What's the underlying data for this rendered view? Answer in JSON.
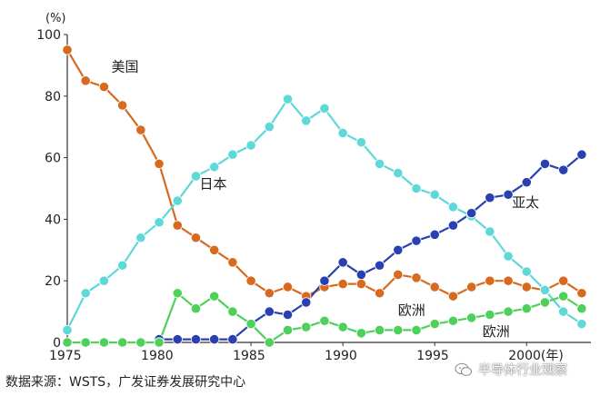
{
  "source_note": "数据来源：WSTS，广发证券发展研究中心",
  "watermark": {
    "text": "半导体行业观察",
    "icon": "wechat-icon"
  },
  "chart_data": {
    "type": "line",
    "y_unit_label": "(%)",
    "ylim": [
      0,
      100
    ],
    "y_ticks": [
      0,
      20,
      40,
      60,
      80,
      100
    ],
    "xlim": [
      1975,
      2003.5
    ],
    "x_ticks": [
      1975,
      1980,
      1985,
      1990,
      1995,
      2000
    ],
    "x_tick_labels": [
      "1975",
      "1980",
      "1985",
      "1990",
      "1995",
      "2000(年)"
    ],
    "grid": false,
    "series": [
      {
        "name": "美国",
        "color": "#d86a1f",
        "x": [
          1975,
          1976,
          1977,
          1978,
          1979,
          1980,
          1981,
          1982,
          1983,
          1984,
          1985,
          1986,
          1987,
          1988,
          1989,
          1990,
          1991,
          1992,
          1993,
          1994,
          1995,
          1996,
          1997,
          1998,
          1999,
          2000,
          2001,
          2002,
          2003
        ],
        "values": [
          95,
          85,
          83,
          77,
          69,
          58,
          38,
          34,
          30,
          26,
          20,
          16,
          18,
          15,
          18,
          19,
          19,
          16,
          22,
          21,
          18,
          15,
          18,
          20,
          20,
          18,
          17,
          20,
          16
        ]
      },
      {
        "name": "日本",
        "color": "#5fd8d8",
        "x": [
          1975,
          1976,
          1977,
          1978,
          1979,
          1980,
          1981,
          1982,
          1983,
          1984,
          1985,
          1986,
          1987,
          1988,
          1989,
          1990,
          1991,
          1992,
          1993,
          1994,
          1995,
          1996,
          1997,
          1998,
          1999,
          2000,
          2001,
          2002,
          2003
        ],
        "values": [
          4,
          16,
          20,
          25,
          34,
          39,
          46,
          54,
          57,
          61,
          64,
          70,
          79,
          72,
          76,
          68,
          65,
          58,
          55,
          50,
          48,
          44,
          41,
          36,
          28,
          23,
          17,
          10,
          6
        ]
      },
      {
        "name": "亚太",
        "color": "#2a3fb0",
        "x": [
          1980,
          1981,
          1982,
          1983,
          1984,
          1985,
          1986,
          1987,
          1988,
          1989,
          1990,
          1991,
          1992,
          1993,
          1994,
          1995,
          1996,
          1997,
          1998,
          1999,
          2000,
          2001,
          2002,
          2003
        ],
        "values": [
          1,
          1,
          1,
          1,
          1,
          6,
          10,
          9,
          13,
          20,
          26,
          22,
          25,
          30,
          33,
          35,
          38,
          42,
          47,
          48,
          52,
          58,
          56,
          61
        ]
      },
      {
        "name": "欧洲",
        "color": "#4ed05a",
        "x": [
          1975,
          1976,
          1977,
          1978,
          1979,
          1980,
          1981,
          1982,
          1983,
          1984,
          1985,
          1986,
          1987,
          1988,
          1989,
          1990,
          1991,
          1992,
          1993,
          1994,
          1995,
          1996,
          1997,
          1998,
          1999,
          2000,
          2001,
          2002,
          2003
        ],
        "values": [
          0,
          0,
          0,
          0,
          0,
          0,
          16,
          11,
          15,
          10,
          6,
          0,
          4,
          5,
          7,
          5,
          3,
          4,
          4,
          4,
          6,
          7,
          8,
          9,
          10,
          11,
          13,
          15,
          11
        ]
      }
    ],
    "annotations": [
      {
        "text": "美国",
        "series": 0,
        "x": 1977.4,
        "y": 88
      },
      {
        "text": "日本",
        "series": 1,
        "x": 1982.2,
        "y": 50
      },
      {
        "text": "亚太",
        "series": 2,
        "x": 1999.2,
        "y": 44
      },
      {
        "text": "欧洲",
        "series": 3,
        "x": 1993.0,
        "y": 9
      },
      {
        "text": "欧洲",
        "series": 3,
        "x": 1997.6,
        "y": 2
      }
    ]
  }
}
